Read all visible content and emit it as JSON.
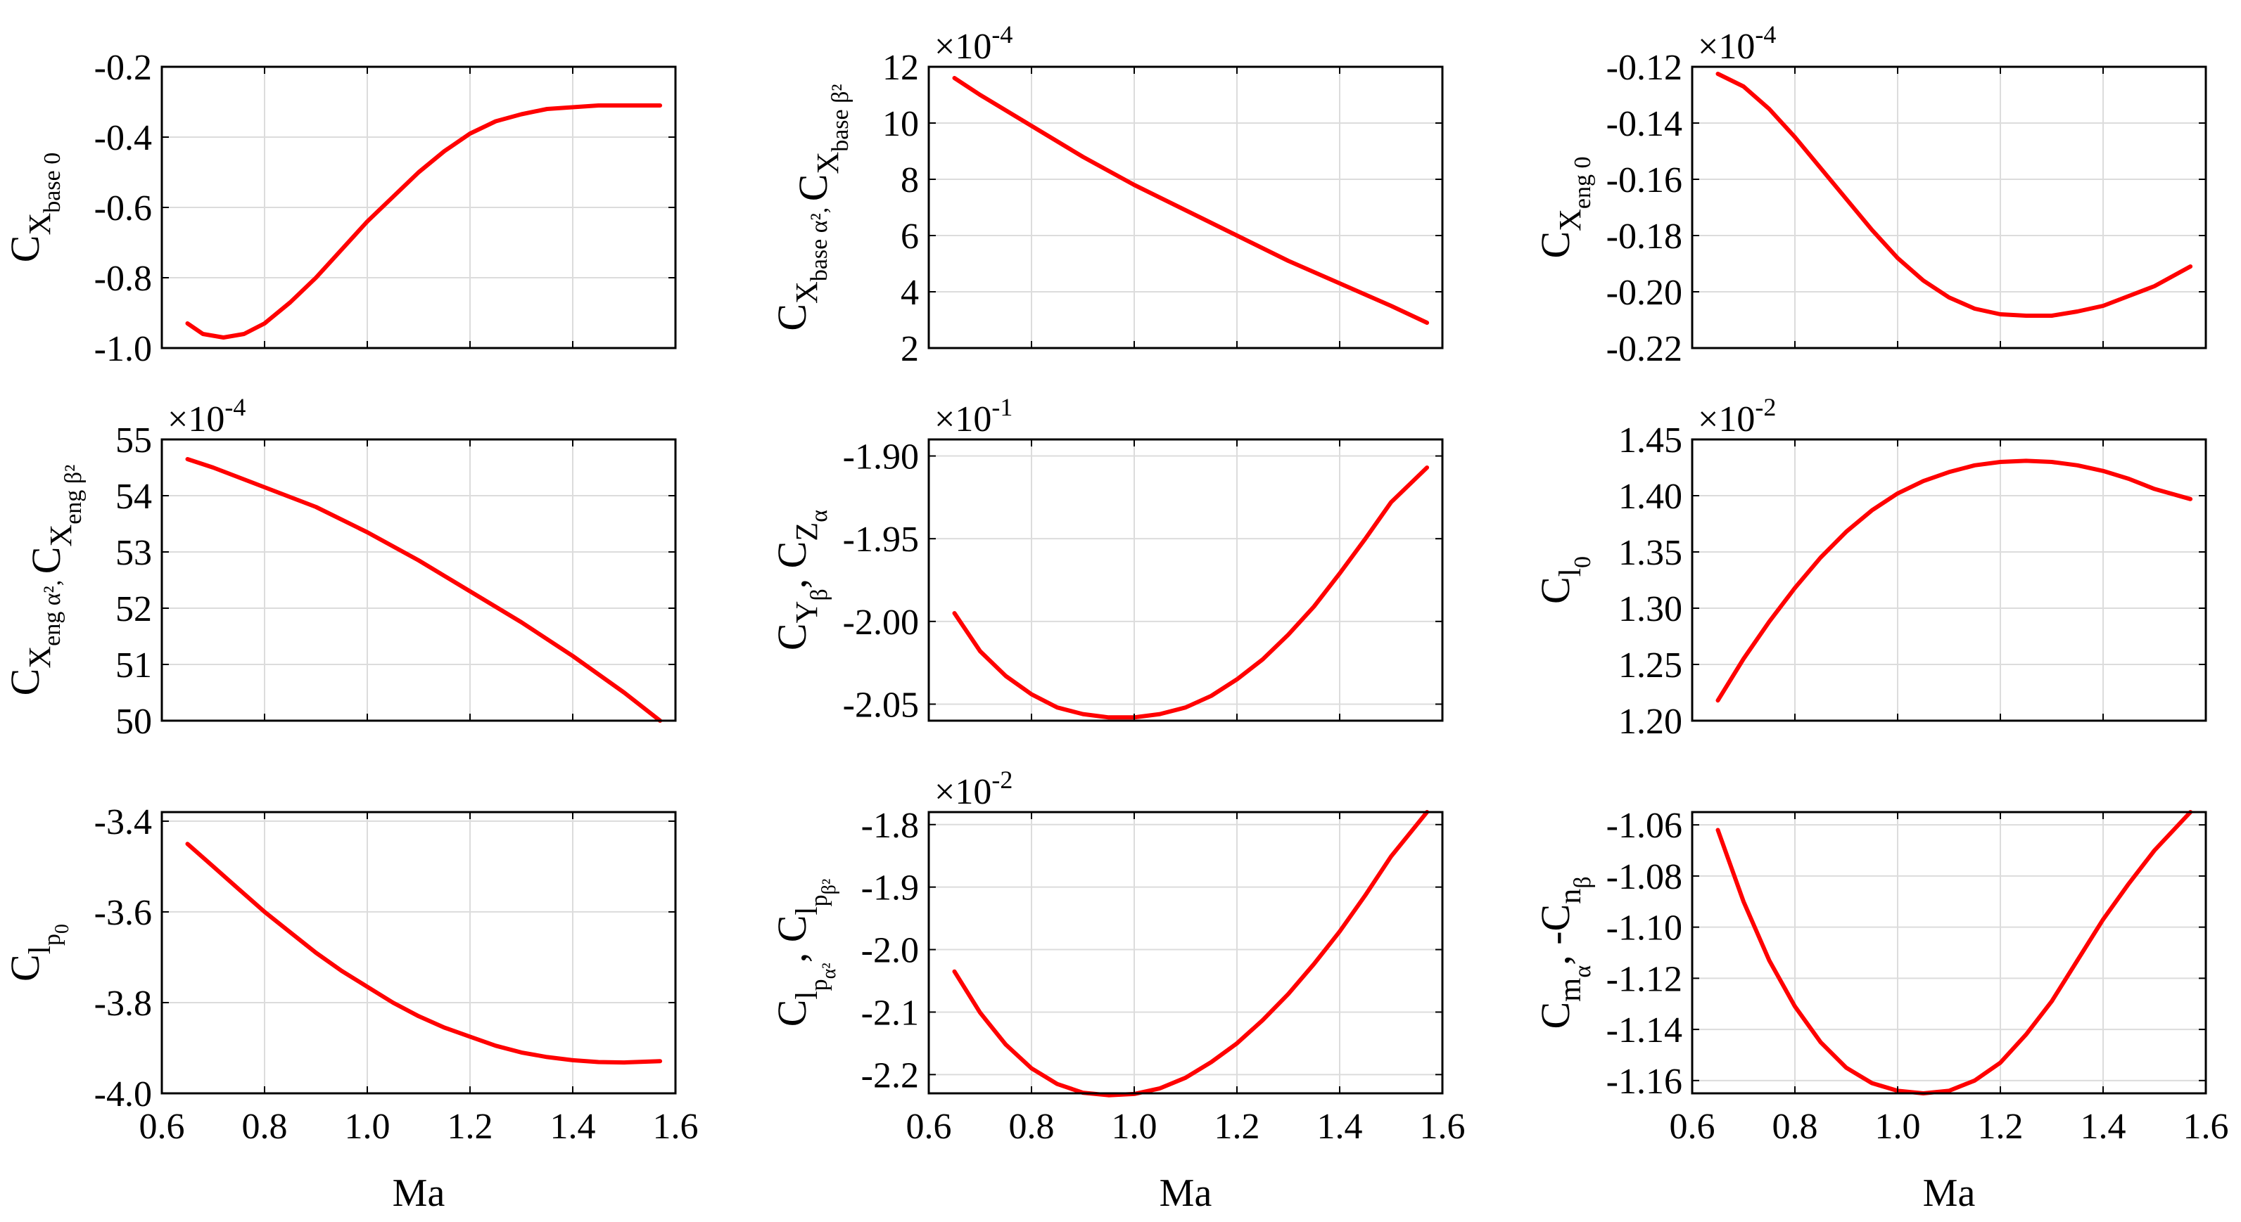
{
  "figure": {
    "shared_xlabel": "Ma",
    "curve_color": "#ff0000",
    "grid_color": "#dcdcdc"
  },
  "chart_data": [
    {
      "id": "cx-base0",
      "type": "line",
      "ylabel_main": "C",
      "ylabel_sub": "X",
      "ylabel_subsub": "base 0",
      "xlim": [
        0.6,
        1.6
      ],
      "xticks": [
        "0.6",
        "0.8",
        "1.0",
        "1.2",
        "1.4",
        "1.6"
      ],
      "show_xticks": false,
      "show_xlabel": false,
      "ylim": [
        -1.0,
        -0.2
      ],
      "yticks": [
        "-1.0",
        "-0.8",
        "-0.6",
        "-0.4",
        "-0.2"
      ],
      "exponent": "",
      "series": [
        {
          "x": [
            0.65,
            0.68,
            0.72,
            0.76,
            0.8,
            0.85,
            0.9,
            0.95,
            1.0,
            1.05,
            1.1,
            1.15,
            1.2,
            1.25,
            1.3,
            1.35,
            1.4,
            1.45,
            1.5,
            1.57
          ],
          "y": [
            -0.93,
            -0.96,
            -0.97,
            -0.96,
            -0.93,
            -0.87,
            -0.8,
            -0.72,
            -0.64,
            -0.57,
            -0.5,
            -0.44,
            -0.39,
            -0.355,
            -0.335,
            -0.32,
            -0.315,
            -0.31,
            -0.31,
            -0.31
          ]
        }
      ]
    },
    {
      "id": "cx-base-a2",
      "type": "line",
      "ylabel_main": "C",
      "ylabel_sub": "X",
      "ylabel_subsub": "base α², ",
      "ylabel_main2": "C",
      "ylabel_sub2": "X",
      "ylabel_subsub2": "base β²",
      "xlim": [
        0.6,
        1.6
      ],
      "xticks": [
        "0.6",
        "0.8",
        "1.0",
        "1.2",
        "1.4",
        "1.6"
      ],
      "show_xticks": false,
      "show_xlabel": false,
      "ylim": [
        2,
        12
      ],
      "yticks": [
        "2",
        "4",
        "6",
        "8",
        "10",
        "12"
      ],
      "exponent": "-4",
      "series": [
        {
          "x": [
            0.65,
            0.7,
            0.8,
            0.9,
            1.0,
            1.1,
            1.2,
            1.3,
            1.4,
            1.5,
            1.57
          ],
          "y": [
            11.6,
            11.0,
            9.9,
            8.8,
            7.8,
            6.9,
            6.0,
            5.1,
            4.3,
            3.5,
            2.9
          ]
        }
      ]
    },
    {
      "id": "cx-eng0",
      "type": "line",
      "ylabel_main": "C",
      "ylabel_sub": "X",
      "ylabel_subsub": "eng 0",
      "xlim": [
        0.6,
        1.6
      ],
      "xticks": [
        "0.6",
        "0.8",
        "1.0",
        "1.2",
        "1.4",
        "1.6"
      ],
      "show_xticks": false,
      "show_xlabel": false,
      "ylim": [
        -0.22,
        -0.12
      ],
      "yticks": [
        "-0.22",
        "-0.20",
        "-0.18",
        "-0.16",
        "-0.14",
        "-0.12"
      ],
      "exponent": "-4",
      "series": [
        {
          "x": [
            0.65,
            0.7,
            0.75,
            0.8,
            0.85,
            0.9,
            0.95,
            1.0,
            1.05,
            1.1,
            1.15,
            1.2,
            1.25,
            1.3,
            1.35,
            1.4,
            1.45,
            1.5,
            1.57
          ],
          "y": [
            -0.1225,
            -0.127,
            -0.135,
            -0.145,
            -0.156,
            -0.167,
            -0.178,
            -0.188,
            -0.196,
            -0.202,
            -0.206,
            -0.208,
            -0.2085,
            -0.2085,
            -0.207,
            -0.205,
            -0.2015,
            -0.198,
            -0.191
          ]
        }
      ]
    },
    {
      "id": "cx-eng-a2",
      "type": "line",
      "ylabel_main": "C",
      "ylabel_sub": "X",
      "ylabel_subsub": "eng α², ",
      "ylabel_main2": "C",
      "ylabel_sub2": "X",
      "ylabel_subsub2": "eng β²",
      "xlim": [
        0.6,
        1.6
      ],
      "xticks": [
        "0.6",
        "0.8",
        "1.0",
        "1.2",
        "1.4",
        "1.6"
      ],
      "show_xticks": false,
      "show_xlabel": false,
      "ylim": [
        50,
        55
      ],
      "yticks": [
        "50",
        "51",
        "52",
        "53",
        "54",
        "55"
      ],
      "exponent": "-4",
      "series": [
        {
          "x": [
            0.65,
            0.7,
            0.8,
            0.9,
            1.0,
            1.1,
            1.2,
            1.3,
            1.4,
            1.5,
            1.57
          ],
          "y": [
            54.65,
            54.5,
            54.15,
            53.8,
            53.35,
            52.85,
            52.3,
            51.75,
            51.15,
            50.5,
            50.0
          ]
        }
      ]
    },
    {
      "id": "cy-beta",
      "type": "line",
      "ylabel_main": "C",
      "ylabel_sub": "Y",
      "ylabel_subsub": "β",
      "ylabel_sep": ", ",
      "ylabel_main2": "C",
      "ylabel_sub2": "Z",
      "ylabel_subsub2": "α",
      "xlim": [
        0.6,
        1.6
      ],
      "xticks": [
        "0.6",
        "0.8",
        "1.0",
        "1.2",
        "1.4",
        "1.6"
      ],
      "show_xticks": false,
      "show_xlabel": false,
      "ylim": [
        -2.06,
        -1.89
      ],
      "yticks": [
        "-2.05",
        "-2.00",
        "-1.95",
        "-1.90"
      ],
      "exponent": "-1",
      "series": [
        {
          "x": [
            0.65,
            0.7,
            0.75,
            0.8,
            0.85,
            0.9,
            0.95,
            1.0,
            1.05,
            1.1,
            1.15,
            1.2,
            1.25,
            1.3,
            1.35,
            1.4,
            1.45,
            1.5,
            1.57
          ],
          "y": [
            -1.995,
            -2.018,
            -2.033,
            -2.044,
            -2.052,
            -2.056,
            -2.058,
            -2.058,
            -2.056,
            -2.052,
            -2.045,
            -2.035,
            -2.023,
            -2.008,
            -1.991,
            -1.971,
            -1.95,
            -1.928,
            -1.907
          ]
        }
      ]
    },
    {
      "id": "cl0",
      "type": "line",
      "ylabel_main": "C",
      "ylabel_sub": "l",
      "ylabel_subsub": "0",
      "xlim": [
        0.6,
        1.6
      ],
      "xticks": [
        "0.6",
        "0.8",
        "1.0",
        "1.2",
        "1.4",
        "1.6"
      ],
      "show_xticks": false,
      "show_xlabel": false,
      "ylim": [
        1.2,
        1.45
      ],
      "yticks": [
        "1.20",
        "1.25",
        "1.30",
        "1.35",
        "1.40",
        "1.45"
      ],
      "exponent": "-2",
      "series": [
        {
          "x": [
            0.65,
            0.7,
            0.75,
            0.8,
            0.85,
            0.9,
            0.95,
            1.0,
            1.05,
            1.1,
            1.15,
            1.2,
            1.25,
            1.3,
            1.35,
            1.4,
            1.45,
            1.5,
            1.57
          ],
          "y": [
            1.218,
            1.255,
            1.288,
            1.318,
            1.345,
            1.368,
            1.387,
            1.402,
            1.413,
            1.421,
            1.427,
            1.43,
            1.431,
            1.43,
            1.427,
            1.422,
            1.415,
            1.406,
            1.397
          ]
        }
      ]
    },
    {
      "id": "clp0",
      "type": "line",
      "ylabel_main": "C",
      "ylabel_sub": "l",
      "ylabel_subsub": "p",
      "ylabel_subsubsub": "0",
      "xlim": [
        0.6,
        1.6
      ],
      "xticks": [
        "0.6",
        "0.8",
        "1.0",
        "1.2",
        "1.4",
        "1.6"
      ],
      "show_xticks": true,
      "show_xlabel": true,
      "ylim": [
        -4.0,
        -3.38
      ],
      "yticks": [
        "-4.0",
        "-3.8",
        "-3.6",
        "-3.4"
      ],
      "exponent": "",
      "series": [
        {
          "x": [
            0.65,
            0.7,
            0.75,
            0.8,
            0.85,
            0.9,
            0.95,
            1.0,
            1.05,
            1.1,
            1.15,
            1.2,
            1.25,
            1.3,
            1.35,
            1.4,
            1.45,
            1.5,
            1.57
          ],
          "y": [
            -3.45,
            -3.5,
            -3.55,
            -3.6,
            -3.645,
            -3.69,
            -3.73,
            -3.765,
            -3.8,
            -3.83,
            -3.855,
            -3.875,
            -3.895,
            -3.91,
            -3.92,
            -3.927,
            -3.931,
            -3.932,
            -3.929
          ]
        }
      ]
    },
    {
      "id": "clp-a2",
      "type": "line",
      "ylabel_main": "C",
      "ylabel_sub": "l",
      "ylabel_subsub": "p",
      "ylabel_subsubsub": "α²",
      "ylabel_sep": ", ",
      "ylabel_main2": "C",
      "ylabel_sub2": "l",
      "ylabel_subsub2": "p",
      "ylabel_subsubsub2": "β²",
      "xlim": [
        0.6,
        1.6
      ],
      "xticks": [
        "0.6",
        "0.8",
        "1.0",
        "1.2",
        "1.4",
        "1.6"
      ],
      "show_xticks": true,
      "show_xlabel": true,
      "ylim": [
        -2.23,
        -1.78
      ],
      "yticks": [
        "-2.2",
        "-2.1",
        "-2.0",
        "-1.9",
        "-1.8"
      ],
      "exponent": "-2",
      "series": [
        {
          "x": [
            0.65,
            0.7,
            0.75,
            0.8,
            0.85,
            0.9,
            0.95,
            1.0,
            1.05,
            1.1,
            1.15,
            1.2,
            1.25,
            1.3,
            1.35,
            1.4,
            1.45,
            1.5,
            1.57
          ],
          "y": [
            -2.035,
            -2.101,
            -2.152,
            -2.19,
            -2.215,
            -2.229,
            -2.233,
            -2.231,
            -2.222,
            -2.205,
            -2.18,
            -2.15,
            -2.113,
            -2.071,
            -2.023,
            -1.971,
            -1.913,
            -1.851,
            -1.78
          ]
        }
      ]
    },
    {
      "id": "cm-alpha",
      "type": "line",
      "ylabel_main": "C",
      "ylabel_sub": "m",
      "ylabel_subsub": "α",
      "ylabel_sep": ", -",
      "ylabel_main2": "C",
      "ylabel_sub2": "n",
      "ylabel_subsub2": "β",
      "xlim": [
        0.6,
        1.6
      ],
      "xticks": [
        "0.6",
        "0.8",
        "1.0",
        "1.2",
        "1.4",
        "1.6"
      ],
      "show_xticks": true,
      "show_xlabel": true,
      "ylim": [
        -1.165,
        -1.055
      ],
      "yticks": [
        "-1.16",
        "-1.14",
        "-1.12",
        "-1.10",
        "-1.08",
        "-1.06"
      ],
      "exponent": "",
      "series": [
        {
          "x": [
            0.65,
            0.7,
            0.75,
            0.8,
            0.85,
            0.9,
            0.95,
            1.0,
            1.05,
            1.1,
            1.15,
            1.2,
            1.25,
            1.3,
            1.35,
            1.4,
            1.45,
            1.5,
            1.57
          ],
          "y": [
            -1.062,
            -1.09,
            -1.113,
            -1.131,
            -1.145,
            -1.155,
            -1.161,
            -1.164,
            -1.165,
            -1.164,
            -1.16,
            -1.153,
            -1.142,
            -1.129,
            -1.113,
            -1.097,
            -1.083,
            -1.07,
            -1.055
          ]
        }
      ]
    }
  ]
}
